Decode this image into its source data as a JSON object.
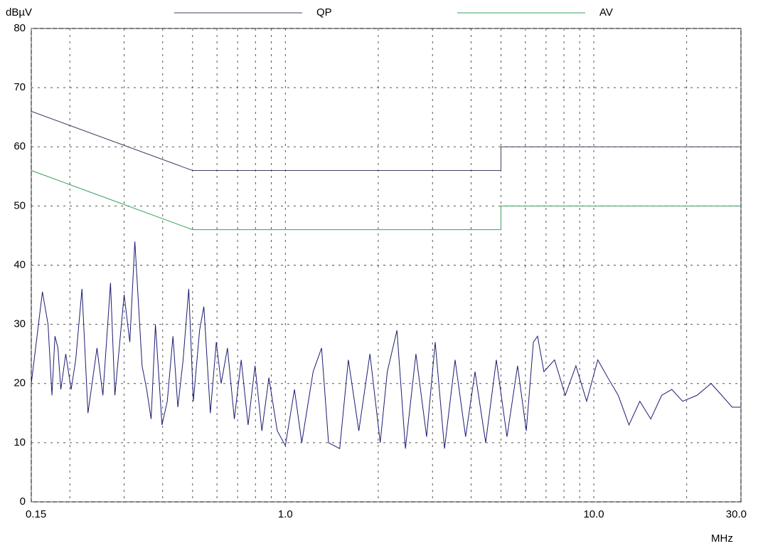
{
  "chart_data": {
    "type": "line",
    "ylabel": "dBµV",
    "xlabel": "MHz",
    "log_x": true,
    "grid": true,
    "legend": "top",
    "xlim": [
      0.15,
      30
    ],
    "ylim": [
      0,
      80
    ],
    "xticks": [
      0.15,
      {
        "value": 1,
        "label": "1.0"
      },
      {
        "value": 10,
        "label": "10.0"
      },
      {
        "value": 30,
        "label": "30.0"
      }
    ],
    "xminor": [
      0.2,
      0.3,
      0.4,
      0.5,
      0.6,
      0.7,
      0.8,
      0.9,
      2,
      3,
      4,
      5,
      6,
      7,
      8,
      9,
      20
    ],
    "yticks": [
      0,
      10,
      20,
      30,
      40,
      50,
      60,
      70,
      80
    ],
    "series": [
      {
        "name": "QP",
        "color": "#404066",
        "x": [
          0.15,
          0.5,
          5,
          5,
          30
        ],
        "values": [
          66,
          56,
          56,
          60,
          60
        ]
      },
      {
        "name": "AV",
        "color": "#3a9e5e",
        "x": [
          0.15,
          0.5,
          5,
          5,
          30
        ],
        "values": [
          56,
          46,
          46,
          50,
          50
        ]
      },
      {
        "color": "#1c1c72",
        "x": [
          0.15,
          0.163,
          0.17,
          0.175,
          0.179,
          0.183,
          0.187,
          0.194,
          0.202,
          0.209,
          0.219,
          0.229,
          0.245,
          0.256,
          0.271,
          0.28,
          0.3,
          0.313,
          0.325,
          0.343,
          0.355,
          0.367,
          0.379,
          0.398,
          0.414,
          0.432,
          0.448,
          0.466,
          0.486,
          0.503,
          0.527,
          0.544,
          0.571,
          0.597,
          0.619,
          0.649,
          0.683,
          0.719,
          0.757,
          0.797,
          0.839,
          0.884,
          0.941,
          1.0,
          1.07,
          1.13,
          1.23,
          1.31,
          1.38,
          1.5,
          1.6,
          1.73,
          1.88,
          2.03,
          2.14,
          2.3,
          2.45,
          2.65,
          2.87,
          3.06,
          3.28,
          3.55,
          3.84,
          4.12,
          4.46,
          4.83,
          5.23,
          5.66,
          6.04,
          6.37,
          6.57,
          6.89,
          7.46,
          8.08,
          8.75,
          9.48,
          10.3,
          11.1,
          12,
          13,
          14.1,
          15.3,
          16.6,
          17.9,
          19.4,
          21.6,
          24,
          26,
          28.1,
          30
        ],
        "values": [
          20,
          35.5,
          30,
          18,
          28,
          26,
          19,
          25,
          19,
          24,
          36,
          15,
          26,
          18,
          37,
          18,
          35,
          27,
          44,
          23,
          19,
          14,
          30,
          13,
          17,
          28,
          16,
          24,
          36,
          17,
          29,
          33,
          15,
          27,
          20,
          26,
          14,
          24,
          13,
          23,
          12,
          21,
          12,
          9.5,
          19,
          10,
          22,
          26,
          10,
          9,
          24,
          12,
          25,
          10,
          22,
          29,
          9,
          25,
          11,
          27,
          9,
          24,
          11,
          22,
          10,
          24,
          11,
          23,
          12,
          27,
          28,
          22,
          24,
          18,
          23,
          17,
          24,
          21,
          18,
          13,
          17,
          14,
          18,
          19,
          17,
          18,
          20,
          18,
          16,
          16
        ]
      }
    ]
  }
}
